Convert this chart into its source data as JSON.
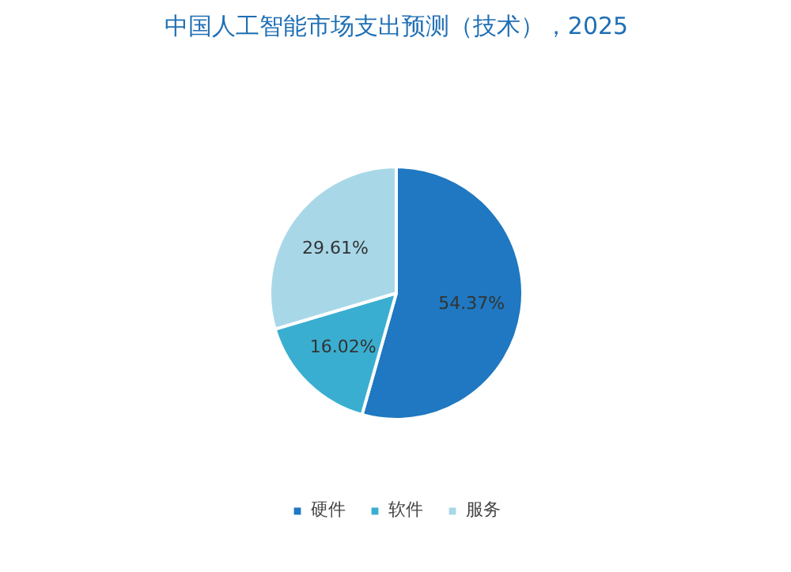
{
  "chart_data": {
    "type": "pie",
    "title": "中国人工智能市场支出预测（技术），2025",
    "categories": [
      "硬件",
      "软件",
      "服务"
    ],
    "values": [
      54.37,
      16.02,
      29.61
    ],
    "value_labels": [
      "54.37%",
      "16.02%",
      "29.61%"
    ],
    "colors": [
      "#1f78c1",
      "#3aaed0",
      "#a8d8e8"
    ],
    "legend": "bottom"
  }
}
